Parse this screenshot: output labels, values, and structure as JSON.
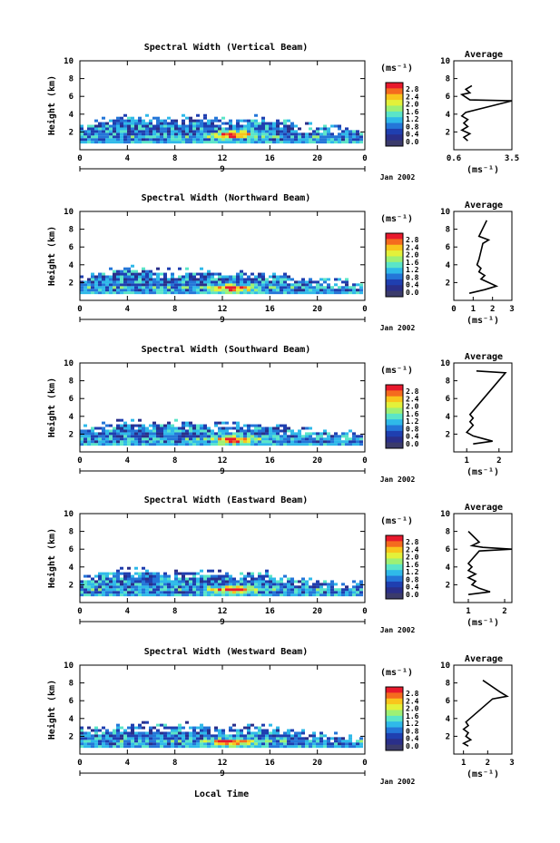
{
  "footer": {
    "xlabel": "Local Time"
  },
  "colorbar": {
    "unit_label": "(ms⁻¹)",
    "tick_labels": [
      "2.8",
      "2.4",
      "2.0",
      "1.6",
      "1.2",
      "0.8",
      "0.4",
      "0.0"
    ],
    "colors": [
      "#e8192c",
      "#f56b1e",
      "#f9c51c",
      "#e3f13a",
      "#9ef074",
      "#5be5c8",
      "#2fb9e9",
      "#2476d8",
      "#1f3fb0",
      "#2a2f8a",
      "#3b3b6b"
    ],
    "vmin": 0.0,
    "vmax": 3.0
  },
  "chart_data": [
    {
      "type": "heatmap",
      "title": "Spectral Width (Vertical Beam)",
      "ylabel": "Height (km)",
      "x_ticks": [
        "0",
        "4",
        "8",
        "12",
        "16",
        "20",
        "0"
      ],
      "date_label": "Jan 2002",
      "day_label": "9",
      "ylim": [
        0,
        10
      ],
      "y_ticks": [
        "10",
        "8",
        "6",
        "4",
        "2"
      ],
      "xlim": [
        0,
        24
      ],
      "hot_spot": {
        "x_hour": 13,
        "y_km": 1.5
      },
      "coverage_top_km": [
        2.5,
        2.6,
        3.0,
        3.2,
        3.3,
        3.3,
        3.2,
        3.1,
        3.2,
        3.3,
        3.3,
        3.2,
        3.1,
        3.0,
        3.2,
        3.3,
        3.1,
        2.8,
        2.6,
        2.4,
        2.3,
        2.2,
        2.1,
        2.0,
        2.0
      ],
      "avg": {
        "title": "Average",
        "xlabel": "(ms⁻¹)",
        "x_ticks": [
          "0.6",
          "3.5"
        ],
        "xlim": [
          0.6,
          3.5
        ],
        "heights_km": [
          1.0,
          1.4,
          1.8,
          2.2,
          2.6,
          3.0,
          3.4,
          3.8,
          4.2,
          5.5,
          5.6,
          6.2,
          6.4,
          6.8,
          7.2
        ],
        "values": [
          1.3,
          1.1,
          1.4,
          1.0,
          1.3,
          1.1,
          1.3,
          1.0,
          1.2,
          3.5,
          1.4,
          1.0,
          1.4,
          1.2,
          1.5
        ]
      }
    },
    {
      "type": "heatmap",
      "title": "Spectral Width (Northward Beam)",
      "ylabel": "Height (km)",
      "x_ticks": [
        "0",
        "4",
        "8",
        "12",
        "16",
        "20",
        "0"
      ],
      "date_label": "Jan 2002",
      "day_label": "9",
      "ylim": [
        0,
        10
      ],
      "y_ticks": [
        "10",
        "8",
        "6",
        "4",
        "2"
      ],
      "xlim": [
        0,
        24
      ],
      "hot_spot": {
        "x_hour": 13,
        "y_km": 1.2
      },
      "coverage_top_km": [
        2.4,
        2.6,
        2.9,
        3.1,
        3.2,
        3.2,
        3.0,
        2.9,
        3.0,
        3.1,
        3.0,
        2.9,
        2.8,
        2.7,
        2.9,
        3.0,
        2.8,
        2.6,
        2.4,
        2.2,
        2.0,
        1.9,
        1.8,
        1.7,
        1.7
      ],
      "avg": {
        "title": "Average",
        "xlabel": "(ms⁻¹)",
        "x_ticks": [
          "0",
          "1",
          "2",
          "3"
        ],
        "xlim": [
          0,
          3
        ],
        "heights_km": [
          0.8,
          1.2,
          1.6,
          2.0,
          2.4,
          2.8,
          3.2,
          3.6,
          4.0,
          4.6,
          6.4,
          6.8,
          7.2,
          9.0
        ],
        "values": [
          0.8,
          1.6,
          2.2,
          1.8,
          1.4,
          1.6,
          1.3,
          1.4,
          1.2,
          1.3,
          1.5,
          1.8,
          1.3,
          1.7
        ]
      }
    },
    {
      "type": "heatmap",
      "title": "Spectral Width (Southward Beam)",
      "ylabel": "Height (km)",
      "x_ticks": [
        "0",
        "4",
        "8",
        "12",
        "16",
        "20",
        "0"
      ],
      "date_label": "Jan 2002",
      "day_label": "9",
      "ylim": [
        0,
        10
      ],
      "y_ticks": [
        "10",
        "8",
        "6",
        "4",
        "2"
      ],
      "xlim": [
        0,
        24
      ],
      "hot_spot": {
        "x_hour": 13,
        "y_km": 1.2
      },
      "coverage_top_km": [
        2.3,
        2.5,
        2.8,
        3.0,
        3.1,
        3.0,
        2.9,
        2.8,
        2.9,
        3.0,
        2.9,
        2.8,
        2.7,
        2.6,
        2.8,
        2.9,
        2.7,
        2.5,
        2.3,
        2.1,
        2.0,
        1.9,
        1.8,
        1.7,
        1.7
      ],
      "avg": {
        "title": "Average",
        "xlabel": "(ms⁻¹)",
        "x_ticks": [
          "1",
          "2"
        ],
        "xlim": [
          0.6,
          2.4
        ],
        "heights_km": [
          0.9,
          1.2,
          1.5,
          1.8,
          2.2,
          2.6,
          3.0,
          3.4,
          3.8,
          4.2,
          8.9,
          9.1
        ],
        "values": [
          1.2,
          1.8,
          1.5,
          1.2,
          1.0,
          1.1,
          1.2,
          1.1,
          1.2,
          1.1,
          2.2,
          1.3
        ]
      }
    },
    {
      "type": "heatmap",
      "title": "Spectral Width (Eastward Beam)",
      "ylabel": "Height (km)",
      "x_ticks": [
        "0",
        "4",
        "8",
        "12",
        "16",
        "20",
        "0"
      ],
      "date_label": "Jan 2002",
      "day_label": "9",
      "ylim": [
        0,
        10
      ],
      "y_ticks": [
        "10",
        "8",
        "6",
        "4",
        "2"
      ],
      "xlim": [
        0,
        24
      ],
      "hot_spot": {
        "x_hour": 13,
        "y_km": 1.3
      },
      "coverage_top_km": [
        2.5,
        2.7,
        3.0,
        3.2,
        3.3,
        3.3,
        3.1,
        3.0,
        3.1,
        3.2,
        3.1,
        3.0,
        2.9,
        2.8,
        3.0,
        3.1,
        2.9,
        2.7,
        2.5,
        2.3,
        2.1,
        2.0,
        1.9,
        1.8,
        1.8
      ],
      "avg": {
        "title": "Average",
        "xlabel": "(ms⁻¹)",
        "x_ticks": [
          "1",
          "2"
        ],
        "xlim": [
          0.6,
          2.2
        ],
        "heights_km": [
          0.9,
          1.2,
          1.6,
          2.0,
          2.4,
          2.8,
          3.2,
          3.6,
          4.0,
          4.4,
          5.8,
          6.0,
          6.2,
          6.4,
          6.8,
          7.6,
          8.0
        ],
        "values": [
          1.0,
          1.6,
          1.3,
          1.1,
          1.2,
          1.0,
          1.2,
          1.0,
          1.1,
          1.0,
          1.3,
          2.2,
          1.4,
          1.1,
          1.3,
          1.1,
          1.0
        ]
      }
    },
    {
      "type": "heatmap",
      "title": "Spectral Width (Westward Beam)",
      "ylabel": "Height (km)",
      "x_ticks": [
        "0",
        "4",
        "8",
        "12",
        "16",
        "20",
        "0"
      ],
      "date_label": "Jan 2002",
      "day_label": "9",
      "ylim": [
        0,
        10
      ],
      "y_ticks": [
        "10",
        "8",
        "6",
        "4",
        "2"
      ],
      "xlim": [
        0,
        24
      ],
      "hot_spot": {
        "x_hour": 13,
        "y_km": 1.2
      },
      "coverage_top_km": [
        2.3,
        2.5,
        2.8,
        3.0,
        3.1,
        3.0,
        2.9,
        2.8,
        2.9,
        3.0,
        2.9,
        2.8,
        2.7,
        2.6,
        2.8,
        2.9,
        2.7,
        2.5,
        2.3,
        2.1,
        2.0,
        1.9,
        1.8,
        1.7,
        1.7
      ],
      "avg": {
        "title": "Average",
        "xlabel": "(ms⁻¹)",
        "x_ticks": [
          "1",
          "2",
          "3"
        ],
        "xlim": [
          0.6,
          3.0
        ],
        "heights_km": [
          0.9,
          1.2,
          1.6,
          2.0,
          2.4,
          2.8,
          3.2,
          3.6,
          6.2,
          6.5,
          7.0,
          8.3
        ],
        "values": [
          1.2,
          1.0,
          1.3,
          1.1,
          1.2,
          1.0,
          1.2,
          1.1,
          2.2,
          2.8,
          2.5,
          1.8
        ]
      }
    }
  ]
}
